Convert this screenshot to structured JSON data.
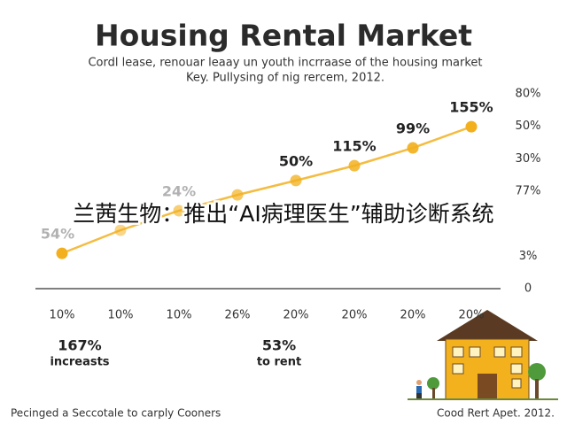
{
  "chart_data": {
    "type": "line",
    "title": "Housing Rental Market",
    "subtitle": [
      "Cordl lease, renouar leaay un youth incrraase of the housing market",
      "Key. Pullysing of nig rercem, 2012."
    ],
    "categories": [
      "10%",
      "10%",
      "10%",
      "26%",
      "20%",
      "20%",
      "20%",
      "20%"
    ],
    "values": [
      14.5,
      24,
      32,
      38.5,
      44.4,
      50.5,
      57.8,
      66.5
    ],
    "point_labels": [
      "54%",
      null,
      "24%",
      null,
      "50%",
      "115%",
      "99%",
      "155%"
    ],
    "color": "#f2b01e",
    "ylim": [
      0,
      80
    ],
    "side_labels": [
      "80%",
      "50%",
      "30%",
      "77%",
      null,
      "3%",
      "0"
    ],
    "stats": [
      {
        "value": "167%",
        "label": "increasts"
      },
      {
        "value": "53%",
        "label": "to rent"
      }
    ],
    "footer_left": "Pecinged a Seccotale to carply Cooners",
    "footer_right": "Cood Rert Apet. 2012.",
    "overlay_caption": "兰茜生物：推出“AI病理医生”辅助诊断系统"
  }
}
